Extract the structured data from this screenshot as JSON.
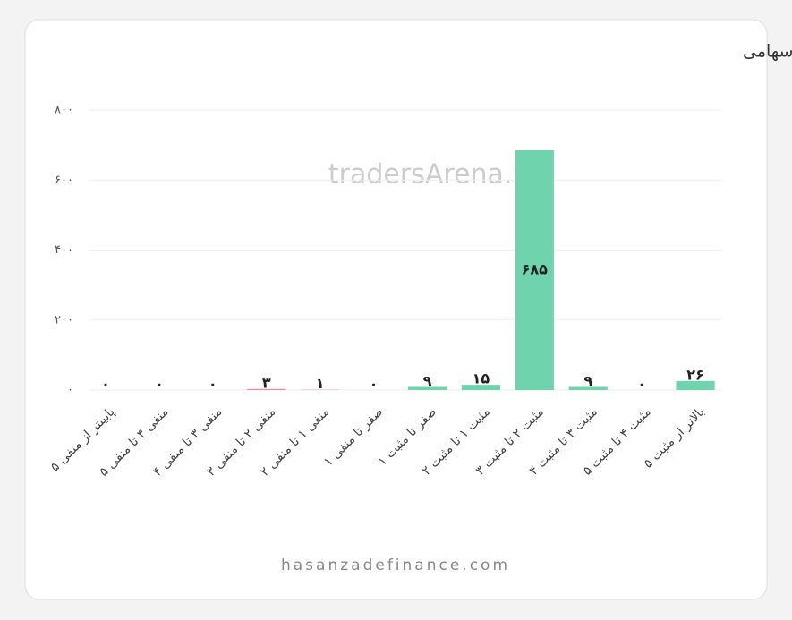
{
  "chart_data": {
    "type": "bar",
    "title": "محدوده قیمتی آخرین معاملات سهام،حق تقدم و ص.سهامی",
    "watermark": "tradersArena.ir",
    "footer": "hasanzadefinance.com",
    "categories": [
      "پایینتر از منفی ۵",
      "منفی ۴ تا منفی ۵",
      "منفی ۳ تا منفی ۴",
      "منفی ۲ تا منفی ۳",
      "منفی ۱ تا منفی ۲",
      "صفر تا منفی ۱",
      "صفر تا مثبت ۱",
      "مثبت ۱ تا مثبت ۲",
      "مثبت ۲ تا مثبت ۳",
      "مثبت ۳ تا مثبت ۴",
      "مثبت ۴ تا مثبت ۵",
      "بالاتر از مثبت ۵"
    ],
    "values": [
      0,
      0,
      0,
      3,
      1,
      0,
      9,
      15,
      685,
      9,
      0,
      26
    ],
    "value_labels": [
      "۰",
      "۰",
      "۰",
      "۳",
      "۱",
      "۰",
      "۹",
      "۱۵",
      "۶۸۵",
      "۹",
      "۰",
      "۲۶"
    ],
    "colors": [
      "#f28b9b",
      "#f28b9b",
      "#f28b9b",
      "#f28b9b",
      "#f28b9b",
      "#f28b9b",
      "#6fd3ad",
      "#6fd3ad",
      "#6fd3ad",
      "#6fd3ad",
      "#6fd3ad",
      "#6fd3ad"
    ],
    "ylim": [
      0,
      800
    ],
    "yticks": [
      {
        "value": 0,
        "label": "۰"
      },
      {
        "value": 200,
        "label": "۲۰۰"
      },
      {
        "value": 400,
        "label": "۴۰۰"
      },
      {
        "value": 600,
        "label": "۶۰۰"
      },
      {
        "value": 800,
        "label": "۸۰۰"
      }
    ],
    "grid": true
  }
}
